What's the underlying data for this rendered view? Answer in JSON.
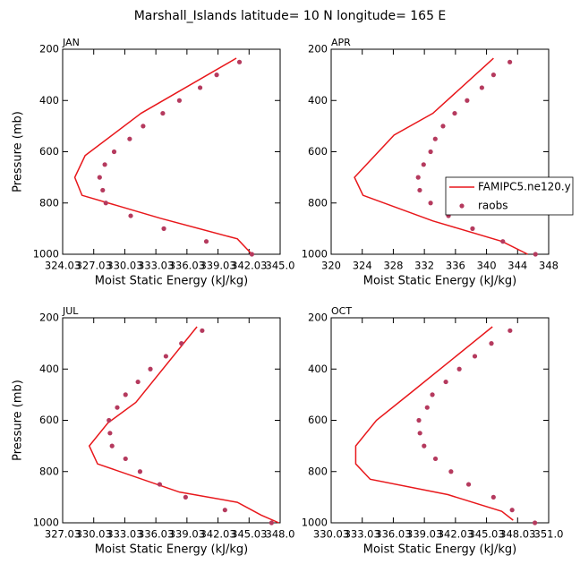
{
  "title": "Marshall_Islands  latitude= 10 N longitude= 165 E",
  "chart_data": [
    {
      "type": "line",
      "title": "JAN",
      "xlabel": "Moist Static Energy (kJ/kg)",
      "ylabel": "Pressure (mb)",
      "xlim": [
        324.03,
        345.03
      ],
      "xticks": [
        324.03,
        327.03,
        330.03,
        333.03,
        336.03,
        339.03,
        342.03,
        {
          "value": 345.03,
          "label": "345.0"
        }
      ],
      "ylim": [
        1000,
        200
      ],
      "yticks": [
        200,
        400,
        600,
        800,
        1000
      ],
      "series": [
        {
          "style": "line",
          "color": "#e8171b",
          "x": [
            340.8,
            331.6,
            326.2,
            325.2,
            325.9,
            333.5,
            340.9,
            342.3
          ],
          "y": [
            235,
            450,
            615,
            700,
            770,
            860,
            940,
            1000
          ]
        },
        {
          "style": "markers",
          "color": "#b53a5e",
          "x": [
            341.1,
            338.9,
            337.3,
            335.3,
            333.7,
            331.8,
            330.5,
            329.0,
            328.1,
            327.6,
            327.9,
            328.2,
            330.6,
            333.8,
            337.9,
            342.3
          ],
          "y": [
            250,
            300,
            350,
            400,
            450,
            500,
            550,
            600,
            650,
            700,
            750,
            800,
            850,
            900,
            950,
            1000
          ]
        }
      ]
    },
    {
      "type": "line",
      "title": "APR",
      "xlabel": "Moist Static Energy (kJ/kg)",
      "legend": "right",
      "xlim": [
        320,
        348
      ],
      "xticks": [
        320,
        324,
        328,
        332,
        336,
        340,
        344,
        348
      ],
      "ylim": [
        1000,
        200
      ],
      "yticks": [
        200,
        400,
        600,
        800,
        1000
      ],
      "series": [
        {
          "name": "FAMIPC5.ne120.y",
          "style": "line",
          "color": "#e8171b",
          "x": [
            340.9,
            333.1,
            328.1,
            323.0,
            324.1,
            333.1,
            342.0,
            345.3
          ],
          "y": [
            235,
            450,
            535,
            700,
            770,
            870,
            950,
            1000
          ]
        },
        {
          "name": "raobs",
          "style": "markers",
          "color": "#b53a5e",
          "x": [
            343.0,
            340.9,
            339.4,
            337.5,
            335.9,
            334.4,
            333.4,
            332.8,
            331.9,
            331.2,
            331.4,
            332.8,
            335.1,
            338.2,
            342.1,
            346.3
          ],
          "y": [
            250,
            300,
            350,
            400,
            450,
            500,
            550,
            600,
            650,
            700,
            750,
            800,
            850,
            900,
            950,
            1000
          ]
        }
      ]
    },
    {
      "type": "line",
      "title": "JUL",
      "xlabel": "Moist Static Energy (kJ/kg)",
      "ylabel": "Pressure (mb)",
      "xlim": [
        327.03,
        348.03
      ],
      "xticks": [
        327.03,
        330.03,
        333.03,
        336.03,
        339.03,
        342.03,
        345.03,
        {
          "value": 348.03,
          "label": "348.0"
        }
      ],
      "ylim": [
        1000,
        200
      ],
      "yticks": [
        200,
        400,
        600,
        800,
        1000
      ],
      "series": [
        {
          "style": "line",
          "color": "#e8171b",
          "x": [
            340.0,
            334.1,
            331.4,
            329.6,
            330.4,
            338.3,
            343.9,
            346.2,
            347.9
          ],
          "y": [
            235,
            530,
            610,
            700,
            770,
            880,
            920,
            970,
            1000
          ]
        },
        {
          "style": "markers",
          "color": "#b53a5e",
          "x": [
            340.5,
            338.5,
            337.0,
            335.5,
            334.3,
            333.1,
            332.3,
            331.5,
            331.6,
            331.8,
            333.1,
            334.5,
            336.4,
            338.9,
            342.7,
            347.2
          ],
          "y": [
            250,
            300,
            350,
            400,
            450,
            500,
            550,
            600,
            650,
            700,
            750,
            800,
            850,
            900,
            950,
            1000
          ]
        }
      ]
    },
    {
      "type": "line",
      "title": "OCT",
      "xlabel": "Moist Static Energy (kJ/kg)",
      "xlim": [
        330.03,
        351.03
      ],
      "xticks": [
        330.03,
        333.03,
        336.03,
        339.03,
        342.03,
        345.03,
        348.03,
        {
          "value": 351.03,
          "label": "351.0"
        }
      ],
      "ylim": [
        1000,
        200
      ],
      "yticks": [
        200,
        400,
        600,
        800,
        1000
      ],
      "series": [
        {
          "style": "line",
          "color": "#e8171b",
          "x": [
            345.6,
            337.8,
            334.4,
            332.4,
            332.4,
            333.8,
            341.3,
            346.5,
            347.6
          ],
          "y": [
            235,
            490,
            600,
            700,
            770,
            830,
            890,
            955,
            990
          ]
        },
        {
          "style": "markers",
          "color": "#b53a5e",
          "x": [
            347.3,
            345.5,
            343.9,
            342.4,
            341.1,
            339.8,
            339.3,
            338.5,
            338.6,
            339.0,
            340.1,
            341.6,
            343.3,
            345.7,
            347.5,
            349.7
          ],
          "y": [
            250,
            300,
            350,
            400,
            450,
            500,
            550,
            600,
            650,
            700,
            750,
            800,
            850,
            900,
            950,
            1000
          ]
        }
      ]
    }
  ]
}
